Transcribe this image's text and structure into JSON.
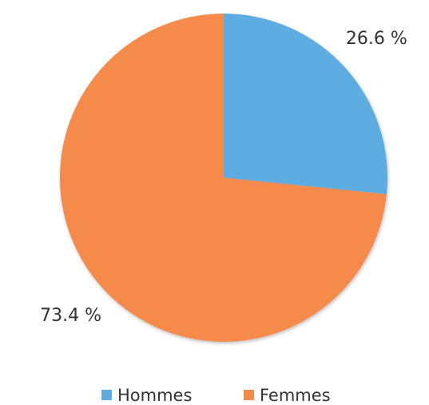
{
  "chart_data": {
    "type": "pie",
    "categories": [
      "Hommes",
      "Femmes"
    ],
    "values": [
      26.6,
      73.4
    ],
    "value_labels": [
      "26.6 %",
      "73.4 %"
    ],
    "colors": [
      "#5dade2",
      "#f58a4b"
    ],
    "legend": "bottom"
  }
}
